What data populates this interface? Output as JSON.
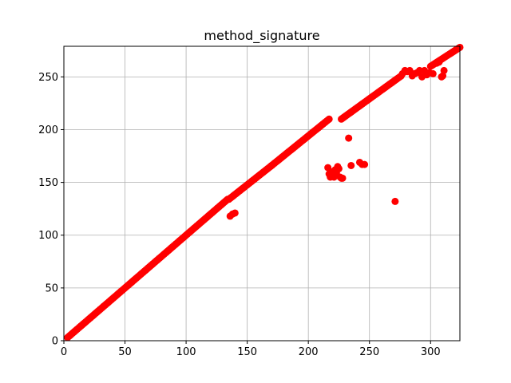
{
  "chart_data": {
    "type": "scatter",
    "title": "method_signature",
    "xlabel": "",
    "ylabel": "",
    "xlim": [
      0,
      324
    ],
    "ylim": [
      0,
      279
    ],
    "grid": true,
    "marker_color": "#ff0000",
    "xticks": [
      0,
      50,
      100,
      150,
      200,
      250,
      300
    ],
    "yticks": [
      0,
      50,
      100,
      150,
      200,
      250
    ],
    "series": [
      {
        "segments": [
          {
            "x_start": 3,
            "x_end": 134,
            "y_start": 3,
            "y_end": 134
          },
          {
            "x_start": 135,
            "x_end": 170,
            "y_start": 134,
            "y_end": 166
          },
          {
            "x_start": 170,
            "x_end": 217,
            "y_start": 166,
            "y_end": 210
          },
          {
            "x_start": 227,
            "x_end": 276,
            "y_start": 210,
            "y_end": 251
          },
          {
            "x_start": 300,
            "x_end": 324,
            "y_start": 260,
            "y_end": 278
          }
        ],
        "points": [
          [
            136,
            118
          ],
          [
            138,
            120
          ],
          [
            140,
            121
          ],
          [
            216,
            164
          ],
          [
            217,
            158
          ],
          [
            218,
            155
          ],
          [
            219,
            160
          ],
          [
            220,
            157
          ],
          [
            221,
            155
          ],
          [
            222,
            162
          ],
          [
            223,
            159
          ],
          [
            224,
            165
          ],
          [
            225,
            163
          ],
          [
            226,
            155
          ],
          [
            227,
            154
          ],
          [
            228,
            154
          ],
          [
            233,
            192
          ],
          [
            235,
            166
          ],
          [
            242,
            169
          ],
          [
            244,
            167
          ],
          [
            246,
            167
          ],
          [
            271,
            132
          ],
          [
            277,
            253
          ],
          [
            279,
            256
          ],
          [
            281,
            255
          ],
          [
            283,
            256
          ],
          [
            285,
            251
          ],
          [
            287,
            253
          ],
          [
            289,
            254
          ],
          [
            291,
            256
          ],
          [
            293,
            250
          ],
          [
            295,
            256
          ],
          [
            297,
            252
          ],
          [
            299,
            254
          ],
          [
            302,
            253
          ],
          [
            305,
            263
          ],
          [
            307,
            264
          ],
          [
            309,
            250
          ],
          [
            310,
            251
          ],
          [
            311,
            256
          ]
        ]
      }
    ]
  }
}
